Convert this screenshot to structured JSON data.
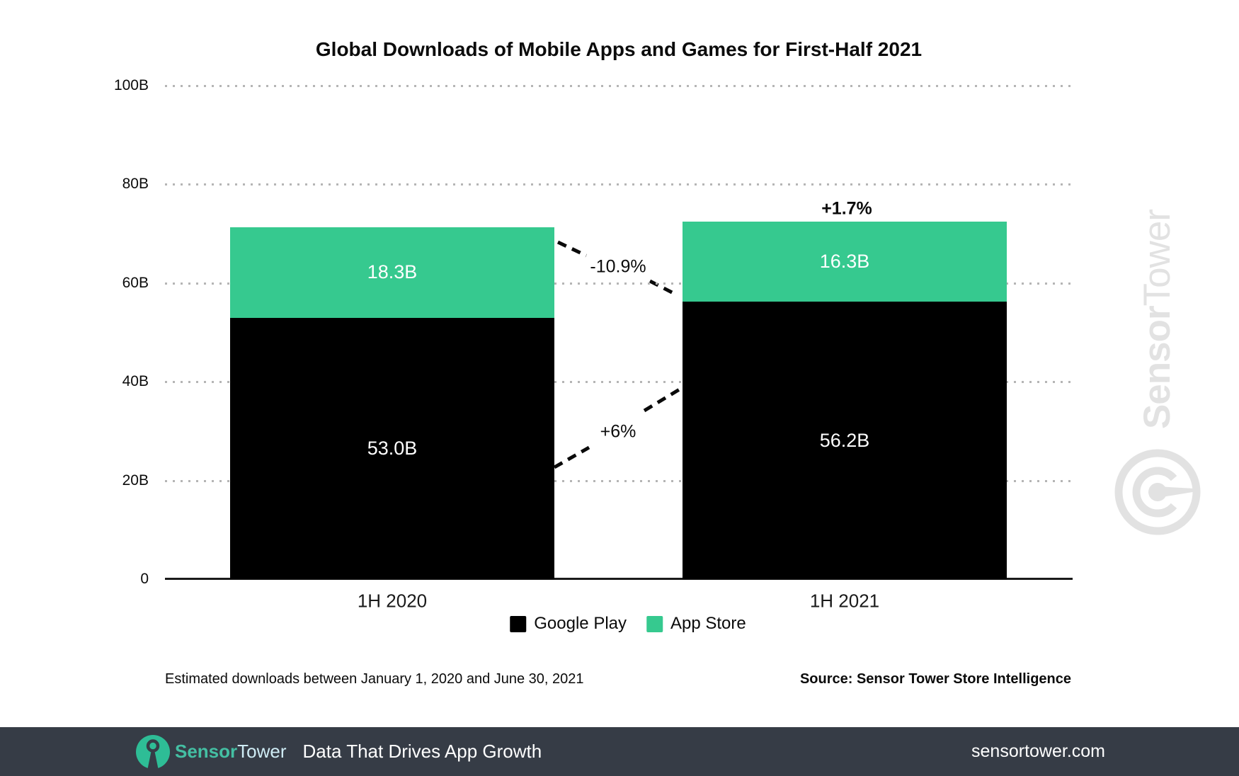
{
  "title": "Global Downloads of Mobile Apps and Games for First-Half 2021",
  "chart_data": {
    "type": "bar",
    "stacked": true,
    "title": "Global Downloads of Mobile Apps and Games for First-Half 2021",
    "categories": [
      "1H 2020",
      "1H 2021"
    ],
    "series": [
      {
        "name": "Google Play",
        "color": "#000000",
        "values": [
          53.0,
          56.2
        ],
        "labels": [
          "53.0B",
          "56.2B"
        ]
      },
      {
        "name": "App Store",
        "color": "#36c98f",
        "values": [
          18.3,
          16.3
        ],
        "labels": [
          "18.3B",
          "16.3B"
        ]
      }
    ],
    "totals": [
      71.3,
      72.5
    ],
    "ylim": [
      0,
      100
    ],
    "y_ticks": [
      {
        "value": 0,
        "label": "0"
      },
      {
        "value": 20,
        "label": "20B"
      },
      {
        "value": 40,
        "label": "40B"
      },
      {
        "value": 60,
        "label": "60B"
      },
      {
        "value": 80,
        "label": "80B"
      },
      {
        "value": 100,
        "label": "100B"
      }
    ],
    "grid": "dotted-horizontal",
    "legend_position": "bottom-center",
    "annotations": [
      {
        "text": "-10.9%",
        "meaning": "App Store change 1H2020 to 1H2021"
      },
      {
        "text": "+6%",
        "meaning": "Google Play change 1H2020 to 1H2021"
      },
      {
        "text": "+1.7%",
        "meaning": "Total change above 1H 2021 bar"
      }
    ]
  },
  "footnote": "Estimated downloads between January 1, 2020 and June 30, 2021",
  "source": "Source: Sensor Tower Store Intelligence",
  "watermark": {
    "bold": "Sensor",
    "regular": "Tower",
    "color": "#e2e2e2"
  },
  "footer": {
    "brand_bold": "Sensor",
    "brand_regular": "Tower",
    "tagline": "Data That Drives App Growth",
    "url": "sensortower.com",
    "background": "#363c46",
    "brand_bold_color": "#44bfa3",
    "brand_regular_color": "#cfecf5",
    "logo_color": "#2ebd96",
    "text_color": "#ffffff"
  }
}
